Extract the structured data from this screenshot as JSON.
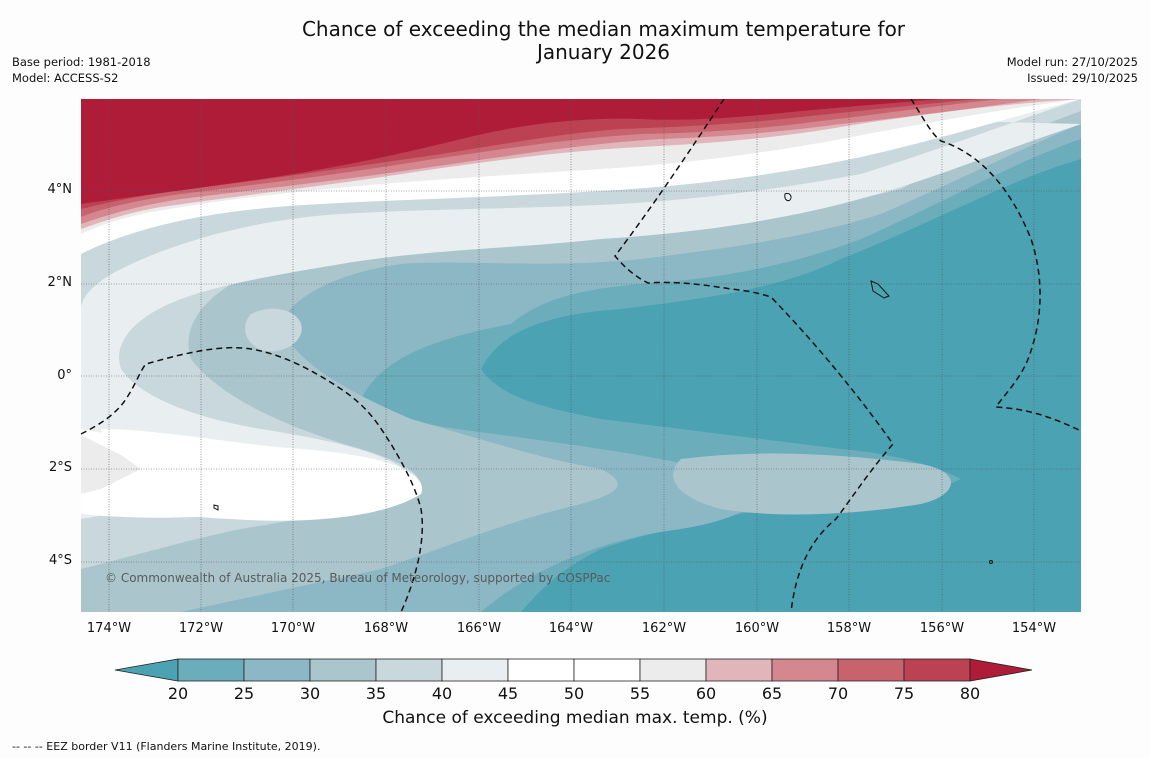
{
  "title": {
    "line1": "Chance of exceeding the median maximum temperature for",
    "line2": "January 2026"
  },
  "meta_left": {
    "base_period": "Base period: 1981-2018",
    "model": "Model: ACCESS-S2"
  },
  "meta_right": {
    "model_run": "Model run: 27/10/2025",
    "issued": "Issued: 29/10/2025"
  },
  "map": {
    "copyright": "© Commonwealth of Australia 2025, Bureau of Meteorology, supported by COSPPac",
    "lat_labels": [
      "4°N",
      "2°N",
      "0°",
      "2°S",
      "4°S"
    ],
    "lon_labels": [
      "174°W",
      "172°W",
      "170°W",
      "168°W",
      "166°W",
      "164°W",
      "162°W",
      "160°W",
      "158°W",
      "156°W",
      "154°W"
    ]
  },
  "legend": {
    "title": "Chance of exceeding median max. temp. (%)",
    "ticks": [
      "20",
      "25",
      "30",
      "35",
      "40",
      "45",
      "50",
      "55",
      "60",
      "65",
      "70",
      "75",
      "80"
    ],
    "colors": [
      "#4aa2b3",
      "#6cadbc",
      "#8cb8c5",
      "#aac6cc",
      "#c9d8dd",
      "#e9eff1",
      "#ffffff",
      "#ffffff",
      "#ececec",
      "#e0b6bb",
      "#d4878f",
      "#c8636e",
      "#bc4153",
      "#ae1c38"
    ]
  },
  "footnote": "--  --  -- EEZ border V11 (Flanders Marine Institute, 2019)."
}
